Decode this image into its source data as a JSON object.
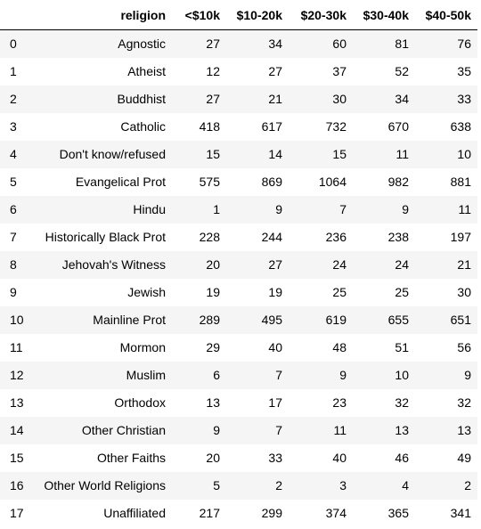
{
  "table": {
    "columns": [
      "",
      "religion",
      "<$10k",
      "$10-20k",
      "$20-30k",
      "$30-40k",
      "$40-50k"
    ],
    "rows": [
      {
        "index": "0",
        "religion": "Agnostic",
        "values": [
          "27",
          "34",
          "60",
          "81",
          "76"
        ]
      },
      {
        "index": "1",
        "religion": "Atheist",
        "values": [
          "12",
          "27",
          "37",
          "52",
          "35"
        ]
      },
      {
        "index": "2",
        "religion": "Buddhist",
        "values": [
          "27",
          "21",
          "30",
          "34",
          "33"
        ]
      },
      {
        "index": "3",
        "religion": "Catholic",
        "values": [
          "418",
          "617",
          "732",
          "670",
          "638"
        ]
      },
      {
        "index": "4",
        "religion": "Don't know/refused",
        "values": [
          "15",
          "14",
          "15",
          "11",
          "10"
        ]
      },
      {
        "index": "5",
        "religion": "Evangelical Prot",
        "values": [
          "575",
          "869",
          "1064",
          "982",
          "881"
        ]
      },
      {
        "index": "6",
        "religion": "Hindu",
        "values": [
          "1",
          "9",
          "7",
          "9",
          "11"
        ]
      },
      {
        "index": "7",
        "religion": "Historically Black Prot",
        "values": [
          "228",
          "244",
          "236",
          "238",
          "197"
        ]
      },
      {
        "index": "8",
        "religion": "Jehovah's Witness",
        "values": [
          "20",
          "27",
          "24",
          "24",
          "21"
        ]
      },
      {
        "index": "9",
        "religion": "Jewish",
        "values": [
          "19",
          "19",
          "25",
          "25",
          "30"
        ]
      },
      {
        "index": "10",
        "religion": "Mainline Prot",
        "values": [
          "289",
          "495",
          "619",
          "655",
          "651"
        ]
      },
      {
        "index": "11",
        "religion": "Mormon",
        "values": [
          "29",
          "40",
          "48",
          "51",
          "56"
        ]
      },
      {
        "index": "12",
        "religion": "Muslim",
        "values": [
          "6",
          "7",
          "9",
          "10",
          "9"
        ]
      },
      {
        "index": "13",
        "religion": "Orthodox",
        "values": [
          "13",
          "17",
          "23",
          "32",
          "32"
        ]
      },
      {
        "index": "14",
        "religion": "Other Christian",
        "values": [
          "9",
          "7",
          "11",
          "13",
          "13"
        ]
      },
      {
        "index": "15",
        "religion": "Other Faiths",
        "values": [
          "20",
          "33",
          "40",
          "46",
          "49"
        ]
      },
      {
        "index": "16",
        "religion": "Other World Religions",
        "values": [
          "5",
          "2",
          "3",
          "4",
          "2"
        ]
      },
      {
        "index": "17",
        "religion": "Unaffiliated",
        "values": [
          "217",
          "299",
          "374",
          "365",
          "341"
        ]
      }
    ]
  },
  "colors": {
    "stripe": "#f5f5f5",
    "header_border": "#000000"
  }
}
